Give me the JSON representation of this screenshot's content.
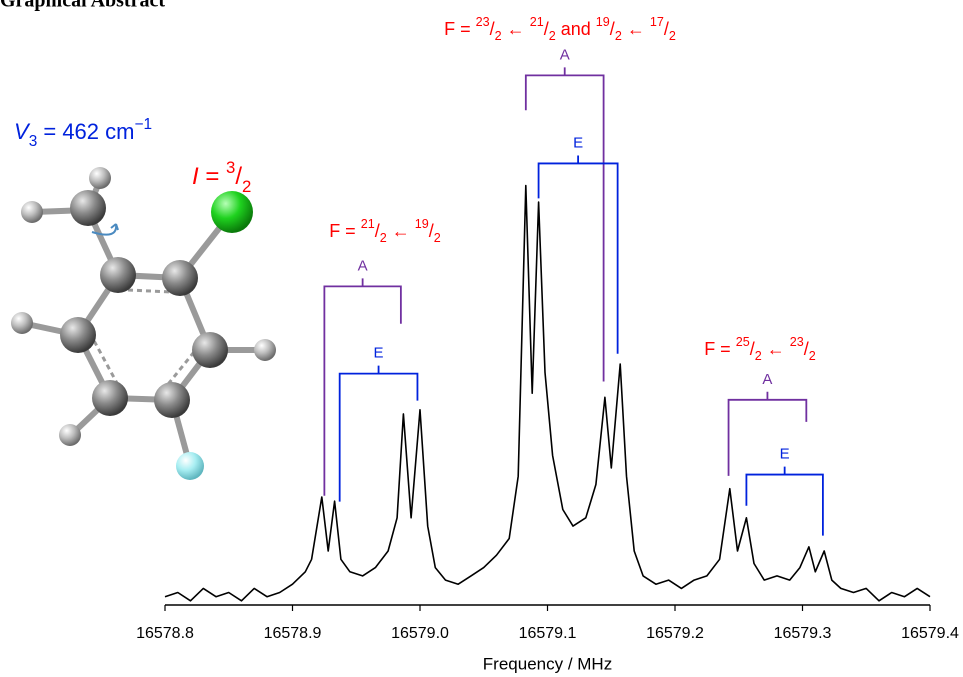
{
  "header": {
    "title": "Graphical Abstract",
    "barrier": [
      {
        "t": "V",
        "italic": true
      },
      {
        "t": "3",
        "sub": true
      },
      {
        "t": " = 462 cm"
      },
      {
        "t": "−1",
        "sup": true
      }
    ],
    "spin": [
      {
        "t": "I",
        "italic": true
      },
      {
        "t": " = "
      },
      {
        "t": "3",
        "sup": true
      },
      {
        "t": "/"
      },
      {
        "t": "2",
        "sub": true
      }
    ]
  },
  "chart_data": {
    "type": "line",
    "xlabel": "Frequency / MHz",
    "color": "#000000",
    "xlim": [
      16578.8,
      16579.4
    ],
    "ylim": [
      -0.01,
      1.03
    ],
    "xticks": [
      16578.8,
      16578.9,
      {
        "value": 16579.0,
        "label": "16579.0"
      },
      16579.1,
      16579.2,
      16579.3,
      16579.4
    ],
    "x": [
      16578.8,
      16578.81,
      16578.82,
      16578.83,
      16578.84,
      16578.85,
      16578.86,
      16578.87,
      16578.88,
      16578.89,
      16578.9,
      16578.91,
      16578.915,
      16578.923,
      16578.928,
      16578.933,
      16578.938,
      16578.945,
      16578.955,
      16578.965,
      16578.975,
      16578.982,
      16578.987,
      16578.993,
      16579.0,
      16579.006,
      16579.012,
      16579.02,
      16579.03,
      16579.04,
      16579.05,
      16579.06,
      16579.07,
      16579.077,
      16579.083,
      16579.088,
      16579.093,
      16579.098,
      16579.104,
      16579.112,
      16579.12,
      16579.13,
      16579.138,
      16579.145,
      16579.15,
      16579.157,
      16579.162,
      16579.168,
      16579.175,
      16579.185,
      16579.195,
      16579.205,
      16579.215,
      16579.225,
      16579.235,
      16579.243,
      16579.249,
      16579.256,
      16579.262,
      16579.27,
      16579.28,
      16579.29,
      16579.298,
      16579.305,
      16579.31,
      16579.317,
      16579.323,
      16579.33,
      16579.34,
      16579.35,
      16579.36,
      16579.37,
      16579.38,
      16579.39,
      16579.4
    ],
    "values": [
      0.01,
      0.02,
      0.0,
      0.03,
      0.01,
      0.02,
      0.0,
      0.03,
      0.01,
      0.02,
      0.04,
      0.07,
      0.1,
      0.25,
      0.12,
      0.24,
      0.1,
      0.07,
      0.06,
      0.08,
      0.12,
      0.2,
      0.45,
      0.2,
      0.46,
      0.18,
      0.08,
      0.05,
      0.04,
      0.06,
      0.08,
      0.11,
      0.15,
      0.3,
      1.0,
      0.5,
      0.96,
      0.55,
      0.35,
      0.22,
      0.18,
      0.2,
      0.28,
      0.49,
      0.32,
      0.57,
      0.3,
      0.12,
      0.06,
      0.04,
      0.05,
      0.03,
      0.05,
      0.06,
      0.1,
      0.27,
      0.12,
      0.2,
      0.09,
      0.05,
      0.06,
      0.05,
      0.08,
      0.13,
      0.07,
      0.12,
      0.05,
      0.03,
      0.02,
      0.03,
      0.0,
      0.02,
      0.01,
      0.03,
      0.01
    ],
    "brackets": [
      {
        "label": "A",
        "color": "#7030a0",
        "x": [
          16578.925,
          16578.985
        ],
        "top": 0.757,
        "left_end": 0.253,
        "right_end": 0.667
      },
      {
        "label": "E",
        "color": "#0022dd",
        "x": [
          16578.937,
          16578.998
        ],
        "top": 0.547,
        "left_end": 0.239,
        "right_end": 0.482
      },
      {
        "label": "A",
        "color": "#7030a0",
        "x": [
          16579.083,
          16579.144
        ],
        "top": 1.265,
        "left_end": 1.181,
        "right_end": 0.528
      },
      {
        "label": "E",
        "color": "#0022dd",
        "x": [
          16579.093,
          16579.155
        ],
        "top": 1.053,
        "left_end": 0.969,
        "right_end": 0.595
      },
      {
        "label": "A",
        "color": "#7030a0",
        "x": [
          16579.242,
          16579.303
        ],
        "top": 0.484,
        "left_end": 0.301,
        "right_end": 0.431
      },
      {
        "label": "E",
        "color": "#0022dd",
        "x": [
          16579.256,
          16579.316
        ],
        "top": 0.304,
        "left_end": 0.229,
        "right_end": 0.157
      }
    ],
    "transitions": [
      [
        {
          "t": "F = "
        },
        {
          "t": "21",
          "sup": true
        },
        {
          "t": "/"
        },
        {
          "t": "2",
          "sub": true
        },
        {
          "t": " ← "
        },
        {
          "t": "19",
          "sup": true
        },
        {
          "t": "/"
        },
        {
          "t": "2",
          "sub": true
        }
      ],
      [
        {
          "t": "F = "
        },
        {
          "t": "23",
          "sup": true
        },
        {
          "t": "/"
        },
        {
          "t": "2",
          "sub": true
        },
        {
          "t": " ← "
        },
        {
          "t": "21",
          "sup": true
        },
        {
          "t": "/"
        },
        {
          "t": "2",
          "sub": true
        },
        {
          "t": " and "
        },
        {
          "t": "19",
          "sup": true
        },
        {
          "t": "/"
        },
        {
          "t": "2",
          "sub": true
        },
        {
          "t": " ← "
        },
        {
          "t": "17",
          "sup": true
        },
        {
          "t": "/"
        },
        {
          "t": "2",
          "sub": true
        }
      ],
      [
        {
          "t": "F = "
        },
        {
          "t": "25",
          "sup": true
        },
        {
          "t": "/"
        },
        {
          "t": "2",
          "sub": true
        },
        {
          "t": " ← "
        },
        {
          "t": "23",
          "sup": true
        },
        {
          "t": "/"
        },
        {
          "t": "2",
          "sub": true
        }
      ]
    ]
  }
}
